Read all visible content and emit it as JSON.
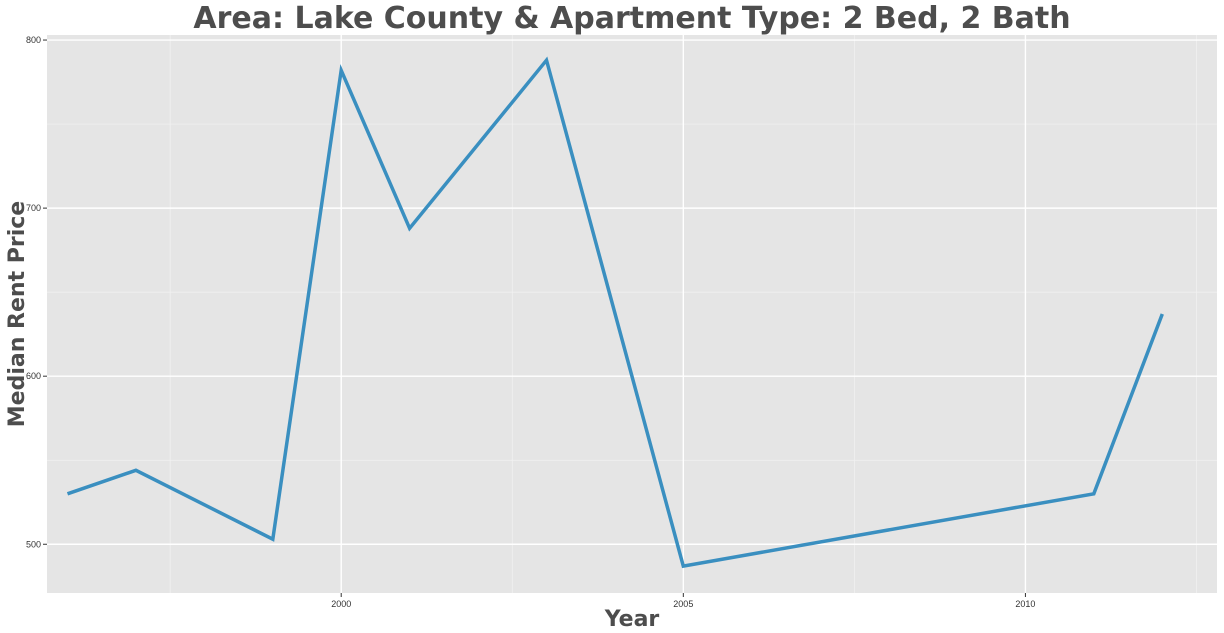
{
  "chart_data": {
    "type": "line",
    "title": "Area: Lake County & Apartment Type: 2 Bed, 2 Bath",
    "xlabel": "Year",
    "ylabel": "Median Rent Price",
    "xlim": [
      1995.7,
      2012.8
    ],
    "ylim": [
      471,
      803
    ],
    "x_ticks": [
      2000,
      2005,
      2010
    ],
    "y_ticks": [
      500,
      600,
      700,
      800
    ],
    "grid": true,
    "series": [
      {
        "name": "Median Rent Price",
        "color": "#3a8fc0",
        "x": [
          1996,
          1997,
          1999,
          2000,
          2001,
          2003,
          2005,
          2011,
          2012
        ],
        "y": [
          530,
          544,
          503,
          782,
          688,
          788,
          487,
          530,
          637
        ]
      }
    ]
  },
  "colors": {
    "panel_background": "#e5e5e5",
    "grid_major": "#ffffff",
    "text": "#4d4d4d"
  }
}
